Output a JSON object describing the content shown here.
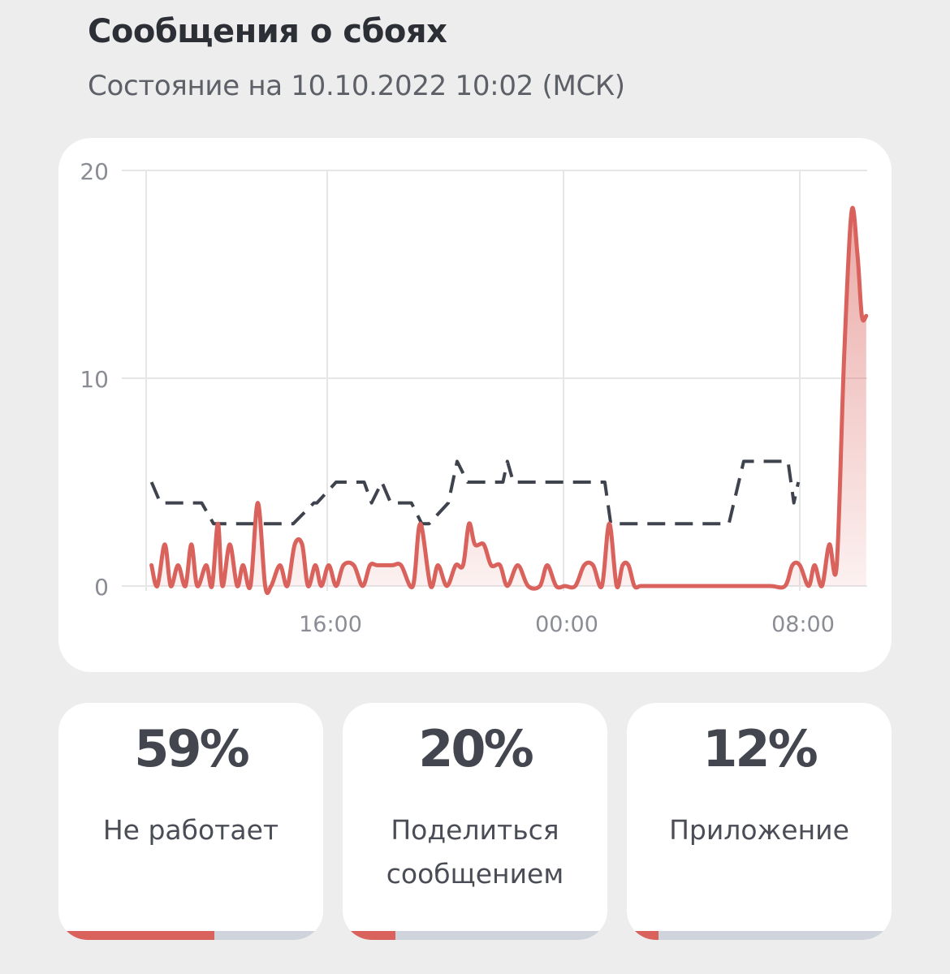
{
  "header": {
    "title": "Сообщения о сбоях",
    "subtitle": "Состояние на 10.10.2022 10:02 (МСК)"
  },
  "chart_data": {
    "type": "line",
    "ylim": [
      0,
      20
    ],
    "y_ticks": [
      "0",
      "10",
      "20"
    ],
    "x_ticks": [
      "16:00",
      "00:00",
      "08:00"
    ],
    "x_tick_hours": [
      16,
      24,
      32
    ],
    "x_range_hours": [
      9.8,
      34.3
    ],
    "grid": true,
    "series": [
      {
        "style": "solid",
        "color": "#d9625c",
        "filled": true,
        "x": [
          10.05,
          10.25,
          10.5,
          10.7,
          10.95,
          11.2,
          11.4,
          11.6,
          11.9,
          12.1,
          12.3,
          12.45,
          12.7,
          12.95,
          13.15,
          13.4,
          13.65,
          13.9,
          14.1,
          14.4,
          14.65,
          14.9,
          15.15,
          15.35,
          15.6,
          15.8,
          16.05,
          16.3,
          16.55,
          16.9,
          17.2,
          17.45,
          17.7,
          18.2,
          18.5,
          18.9,
          19.15,
          19.5,
          19.75,
          20.05,
          20.35,
          20.6,
          20.8,
          21.0,
          21.3,
          21.55,
          21.85,
          22.1,
          22.45,
          22.8,
          23.2,
          23.45,
          23.75,
          24.05,
          24.4,
          24.7,
          25.0,
          25.3,
          25.55,
          25.8,
          26.0,
          26.2,
          26.4,
          26.6,
          26.8,
          27.4,
          28.0,
          29.0,
          30.0,
          31.0,
          31.5,
          31.75,
          32.0,
          32.3,
          32.5,
          32.75,
          33.0,
          33.25,
          33.5,
          33.75,
          33.95,
          34.1,
          34.25
        ],
        "y": [
          1,
          0,
          2,
          0,
          1,
          0,
          2,
          0,
          1,
          0,
          3,
          0,
          2,
          0,
          1,
          0,
          4,
          0,
          0,
          1,
          0,
          2,
          2,
          0,
          1,
          0,
          1,
          0,
          1,
          1,
          0,
          1,
          1,
          1,
          1,
          0,
          3,
          0,
          1,
          0,
          1,
          1,
          3,
          2,
          2,
          1,
          1,
          0,
          1,
          0,
          0,
          1,
          0,
          0,
          0,
          1,
          1,
          0,
          3,
          0,
          1,
          1,
          0,
          0,
          0,
          0,
          0,
          0,
          0,
          0,
          0,
          1,
          1,
          0,
          1,
          0,
          2,
          1,
          11,
          18,
          16,
          13,
          13
        ]
      },
      {
        "style": "dashed",
        "color": "#3f434d",
        "filled": false,
        "x": [
          10.05,
          10.35,
          10.55,
          11.5,
          11.75,
          12.15,
          13.4,
          13.6,
          14.25,
          14.45,
          14.85,
          15.55,
          15.65,
          16.3,
          16.5,
          16.9,
          17.25,
          17.5,
          17.85,
          18.15,
          18.45,
          18.85,
          19.2,
          19.45,
          20.1,
          20.4,
          20.75,
          21.05,
          21.35,
          21.95,
          22.1,
          22.3,
          22.8,
          23.95,
          24.05,
          25.4,
          25.6,
          29.4,
          29.6,
          30.1,
          30.5,
          31.1,
          31.4,
          31.6,
          31.8,
          31.95
        ],
        "y": [
          5,
          4,
          4,
          4,
          4,
          3,
          3,
          3,
          3,
          3,
          3,
          4,
          4,
          5,
          5,
          5,
          5,
          4,
          5,
          4,
          4,
          4,
          3,
          3,
          4,
          6,
          5,
          5,
          5,
          5,
          6,
          5,
          5,
          5,
          5,
          5,
          3,
          3,
          3,
          6,
          6,
          6,
          6,
          6,
          4,
          5
        ]
      }
    ]
  },
  "stats": [
    {
      "value": "59%",
      "label": "Не работает",
      "fraction": 0.59
    },
    {
      "value": "20%",
      "label": "Поделиться сообщением",
      "fraction": 0.2
    },
    {
      "value": "12%",
      "label": "Приложение",
      "fraction": 0.12
    }
  ]
}
